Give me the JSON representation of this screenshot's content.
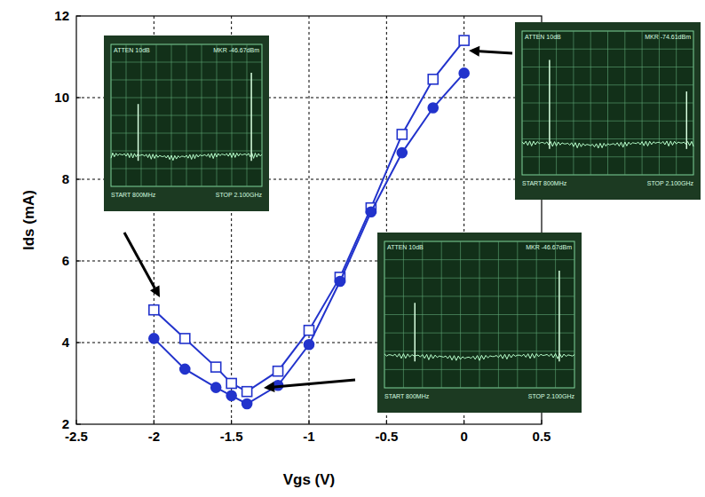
{
  "chart_data": {
    "type": "line",
    "x_label": "Vgs (V)",
    "y_label": "Ids (mA)",
    "x": [
      -2,
      -1.8,
      -1.6,
      -1.5,
      -1.4,
      -1.2,
      -1,
      -0.8,
      -0.6,
      -0.4,
      -0.2,
      0
    ],
    "series": [
      {
        "color": "#2233cc",
        "marker": "square",
        "line_style": "solid",
        "values": [
          4.8,
          4.1,
          3.4,
          3.0,
          2.8,
          3.3,
          4.3,
          5.6,
          7.3,
          9.1,
          10.45,
          11.4
        ]
      },
      {
        "color": "#2233cc",
        "marker": "circle",
        "line_style": "solid",
        "values": [
          4.1,
          3.35,
          2.9,
          2.7,
          2.5,
          2.95,
          3.95,
          5.5,
          7.2,
          8.65,
          9.75,
          10.6
        ]
      }
    ],
    "xlim": [
      -2.5,
      0.5
    ],
    "xticks": [
      -2.5,
      -2,
      -1.5,
      -1,
      -0.5,
      0,
      0.5
    ],
    "ylim": [
      2,
      12
    ],
    "yticks": [
      2,
      4,
      6,
      8,
      10,
      12
    ],
    "grid": true,
    "annotations": [
      {
        "texts": [
          "ATTEN 10dB",
          "MKR -46.67dBm",
          "START 800MHz",
          "STOP 2.100GHz"
        ]
      },
      {
        "texts": [
          "ATTEN 10dB",
          "MKR -74.61dBm",
          "START 800MHz",
          "STOP 2.100GHz"
        ]
      },
      {
        "texts": [
          "ATTEN 10dB",
          "MKR -46.67dBm",
          "START 800MHz",
          "STOP 2.100GHz"
        ]
      }
    ]
  }
}
